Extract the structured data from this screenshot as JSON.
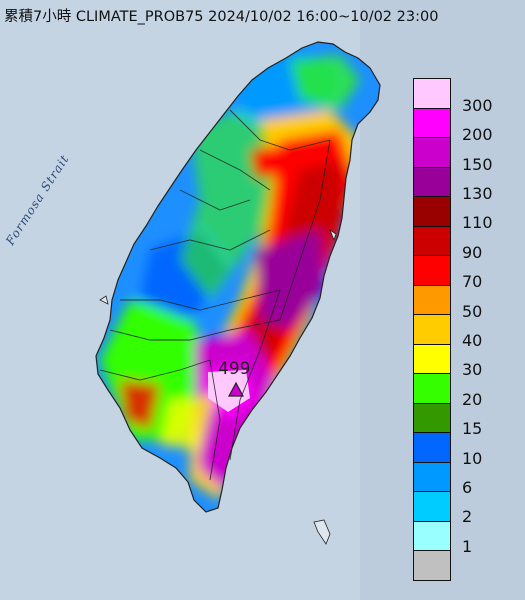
{
  "title": "累積7小時 CLIMATE_PROB75 2024/10/02 16:00~10/02 23:00",
  "strait_label": "Formosa Strait",
  "max_value": "499",
  "legend": {
    "labels": [
      "300",
      "200",
      "150",
      "130",
      "110",
      "90",
      "70",
      "50",
      "40",
      "30",
      "20",
      "15",
      "10",
      "6",
      "2",
      "1"
    ],
    "colors": [
      "#ffc8ff",
      "#ff00ff",
      "#cc00cc",
      "#990099",
      "#990000",
      "#cc0000",
      "#ff0000",
      "#ff9900",
      "#ffcc00",
      "#ffff00",
      "#33ff00",
      "#339900",
      "#0066ff",
      "#0099ff",
      "#00ccff",
      "#99ffff",
      "#c0c0c0"
    ]
  },
  "colors": {
    "ocean": "#c5d4e3",
    "land_low": "#1e8fff",
    "land_mid": "#3fcf30",
    "land_high": "#e00000",
    "land_peak": "#c000c0"
  }
}
